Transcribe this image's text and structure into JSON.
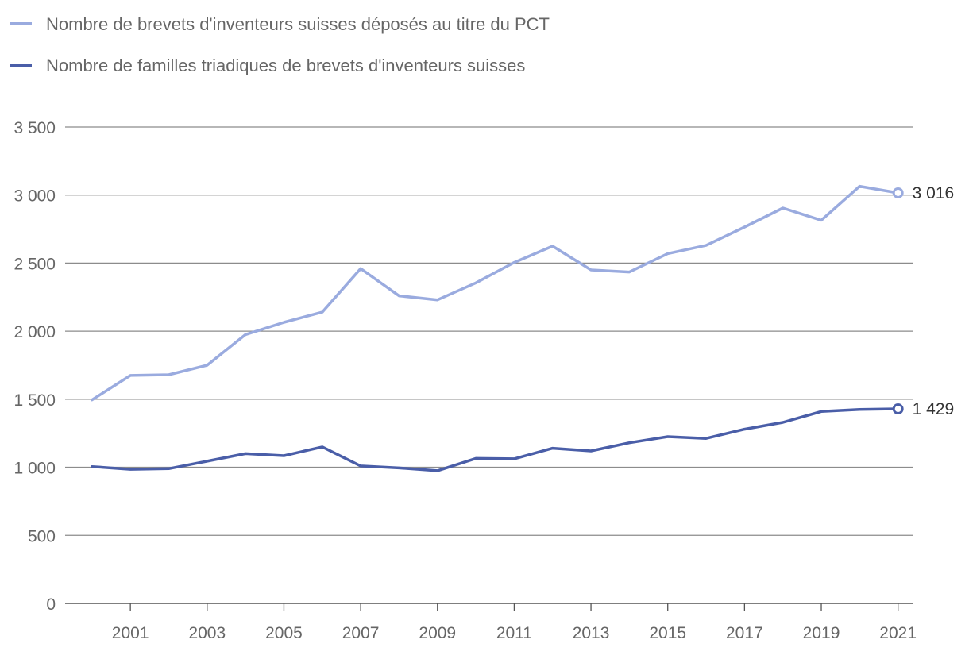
{
  "chart_data": {
    "type": "line",
    "title": "",
    "xlabel": "",
    "ylabel": "",
    "x": [
      2000,
      2001,
      2002,
      2003,
      2004,
      2005,
      2006,
      2007,
      2008,
      2009,
      2010,
      2011,
      2012,
      2013,
      2014,
      2015,
      2016,
      2017,
      2018,
      2019,
      2020,
      2021
    ],
    "x_tick_labels": [
      "2001",
      "2003",
      "2005",
      "2007",
      "2009",
      "2011",
      "2013",
      "2015",
      "2017",
      "2019",
      "2021"
    ],
    "y_tick_labels": [
      "0",
      "500",
      "1 000",
      "1 500",
      "2 000",
      "2 500",
      "3 000",
      "3 500"
    ],
    "y_ticks": [
      0,
      500,
      1000,
      1500,
      2000,
      2500,
      3000,
      3500
    ],
    "xlim": [
      1999.3,
      2021.4
    ],
    "ylim": [
      0,
      3500
    ],
    "grid": true,
    "legend_position": "top-left",
    "series": [
      {
        "name": "Nombre de brevets d'inventeurs suisses déposés au titre du PCT",
        "color": "#9aabdf",
        "values": [
          1495,
          1675,
          1680,
          1750,
          1975,
          2065,
          2140,
          2460,
          2260,
          2230,
          2355,
          2505,
          2625,
          2450,
          2435,
          2570,
          2630,
          2765,
          2905,
          2815,
          3065,
          3016
        ],
        "end_label": "3 016"
      },
      {
        "name": "Nombre de familles triadiques de brevets d'inventeurs suisses",
        "color": "#4a5ea8",
        "values": [
          1005,
          985,
          990,
          1045,
          1100,
          1085,
          1150,
          1010,
          995,
          975,
          1065,
          1062,
          1140,
          1120,
          1180,
          1225,
          1212,
          1280,
          1330,
          1410,
          1425,
          1429
        ],
        "end_label": "1 429"
      }
    ]
  }
}
